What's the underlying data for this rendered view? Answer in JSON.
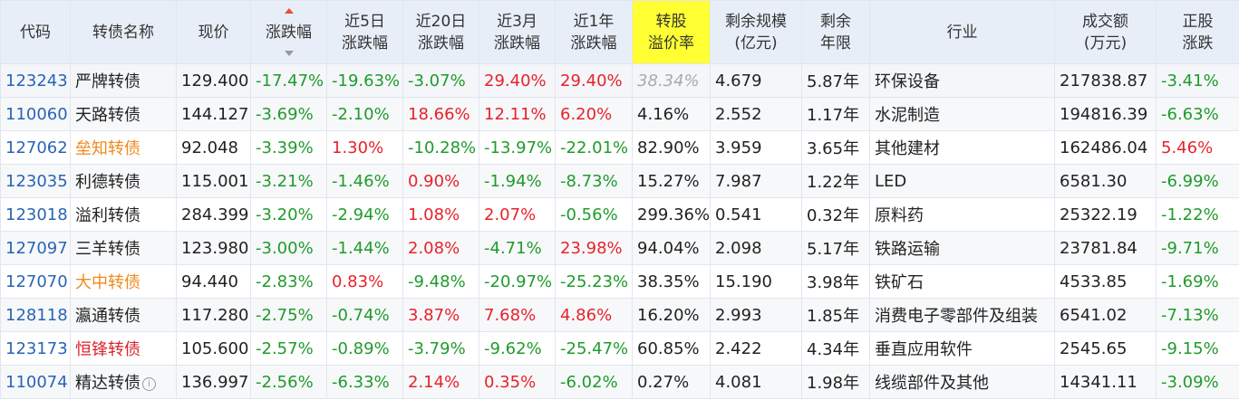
{
  "headers": {
    "code": "代码",
    "name": "转债名称",
    "price": "现价",
    "change": "涨跌幅",
    "chg5d": [
      "近5日",
      "涨跌幅"
    ],
    "chg20d": [
      "近20日",
      "涨跌幅"
    ],
    "chg3m": [
      "近3月",
      "涨跌幅"
    ],
    "chg1y": [
      "近1年",
      "涨跌幅"
    ],
    "premium": [
      "转股",
      "溢价率"
    ],
    "scale": [
      "剩余规模",
      "(亿元)"
    ],
    "years": [
      "剩余",
      "年限"
    ],
    "industry": "行业",
    "volume": [
      "成交额",
      "(万元)"
    ],
    "stock_chg": [
      "正股",
      "涨跌"
    ]
  },
  "colors": {
    "up": "#e6232b",
    "down": "#1f9b2c",
    "code": "#2a64b4",
    "highlight_header": "#ffff33",
    "header_bg": "#e8eef8"
  },
  "rows": [
    {
      "code": "123243",
      "name": "严牌转债",
      "price": "129.400",
      "change": "-17.47%",
      "chg5d": "-19.63%",
      "chg20d": "-3.07%",
      "chg3m": "29.40%",
      "chg1y": "29.40%",
      "premium": "38.34%",
      "scale": "4.679",
      "years": "5.87年",
      "industry": "环保设备",
      "volume": "217838.87",
      "stock_chg": "-3.41%"
    },
    {
      "code": "110060",
      "name": "天路转债",
      "price": "144.127",
      "change": "-3.69%",
      "chg5d": "-2.10%",
      "chg20d": "18.66%",
      "chg3m": "12.11%",
      "chg1y": "6.20%",
      "premium": "4.16%",
      "scale": "2.552",
      "years": "1.17年",
      "industry": "水泥制造",
      "volume": "194816.39",
      "stock_chg": "-6.63%"
    },
    {
      "code": "127062",
      "name": "垒知转债",
      "price": "92.048",
      "change": "-3.39%",
      "chg5d": "1.30%",
      "chg20d": "-10.28%",
      "chg3m": "-13.97%",
      "chg1y": "-22.01%",
      "premium": "82.90%",
      "scale": "3.959",
      "years": "3.65年",
      "industry": "其他建材",
      "volume": "162486.04",
      "stock_chg": "5.46%"
    },
    {
      "code": "123035",
      "name": "利德转债",
      "price": "115.001",
      "change": "-3.21%",
      "chg5d": "-1.46%",
      "chg20d": "0.90%",
      "chg3m": "-1.94%",
      "chg1y": "-8.73%",
      "premium": "15.27%",
      "scale": "7.987",
      "years": "1.22年",
      "industry": "LED",
      "volume": "6581.30",
      "stock_chg": "-6.99%"
    },
    {
      "code": "123018",
      "name": "溢利转债",
      "price": "284.399",
      "change": "-3.20%",
      "chg5d": "-2.94%",
      "chg20d": "1.08%",
      "chg3m": "2.07%",
      "chg1y": "-0.56%",
      "premium": "299.36%",
      "scale": "0.541",
      "years": "0.32年",
      "industry": "原料药",
      "volume": "25322.19",
      "stock_chg": "-1.22%"
    },
    {
      "code": "127097",
      "name": "三羊转债",
      "price": "123.980",
      "change": "-3.00%",
      "chg5d": "-1.44%",
      "chg20d": "2.08%",
      "chg3m": "-4.71%",
      "chg1y": "23.98%",
      "premium": "94.04%",
      "scale": "2.098",
      "years": "5.17年",
      "industry": "铁路运输",
      "volume": "23781.84",
      "stock_chg": "-9.71%"
    },
    {
      "code": "127070",
      "name": "大中转债",
      "price": "94.440",
      "change": "-2.83%",
      "chg5d": "0.83%",
      "chg20d": "-9.48%",
      "chg3m": "-20.97%",
      "chg1y": "-25.23%",
      "premium": "38.35%",
      "scale": "15.190",
      "years": "3.98年",
      "industry": "铁矿石",
      "volume": "4533.85",
      "stock_chg": "-1.69%"
    },
    {
      "code": "128118",
      "name": "瀛通转债",
      "price": "117.280",
      "change": "-2.75%",
      "chg5d": "-0.74%",
      "chg20d": "3.87%",
      "chg3m": "7.68%",
      "chg1y": "4.86%",
      "premium": "16.20%",
      "scale": "2.993",
      "years": "1.85年",
      "industry": "消费电子零部件及组装",
      "volume": "6541.02",
      "stock_chg": "-7.13%"
    },
    {
      "code": "123173",
      "name": "恒锋转债",
      "price": "105.600",
      "change": "-2.57%",
      "chg5d": "-0.89%",
      "chg20d": "-3.79%",
      "chg3m": "-9.62%",
      "chg1y": "-25.47%",
      "premium": "60.85%",
      "scale": "2.422",
      "years": "4.34年",
      "industry": "垂直应用软件",
      "volume": "2545.65",
      "stock_chg": "-9.15%"
    },
    {
      "code": "110074",
      "name": "精达转债",
      "price": "136.997",
      "change": "-2.56%",
      "chg5d": "-6.33%",
      "chg20d": "2.14%",
      "chg3m": "0.35%",
      "chg1y": "-6.02%",
      "premium": "0.27%",
      "scale": "4.081",
      "years": "1.98年",
      "industry": "线缆部件及其他",
      "volume": "14341.11",
      "stock_chg": "-3.09%"
    }
  ]
}
